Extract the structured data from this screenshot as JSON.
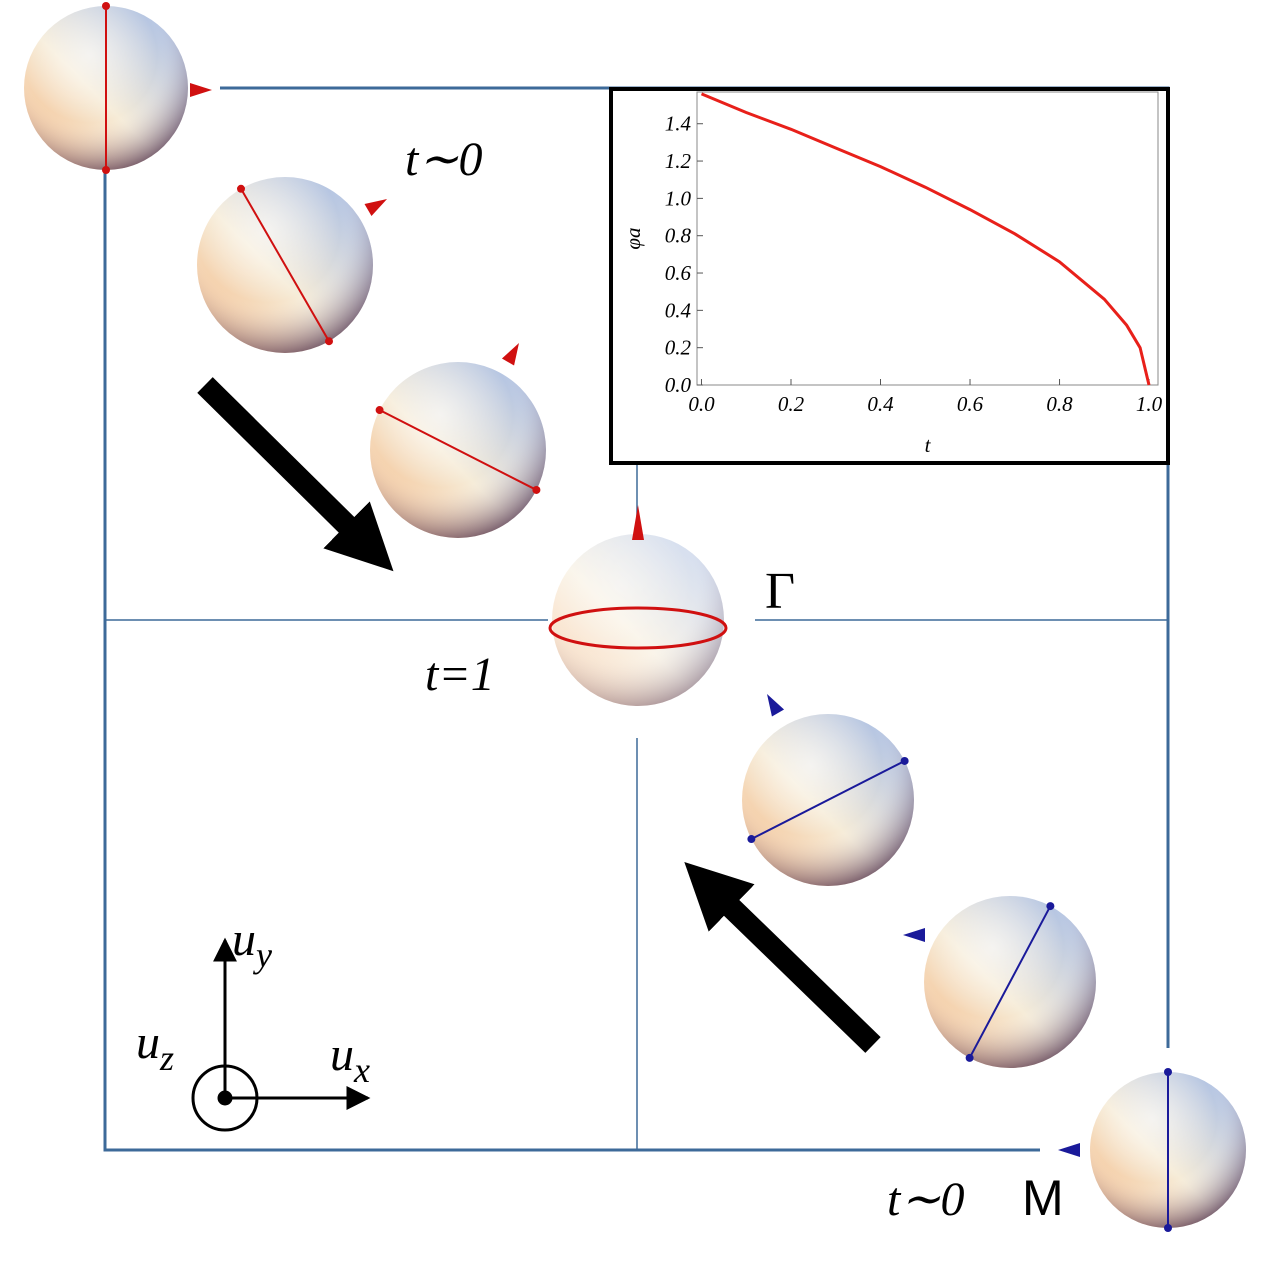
{
  "labels": {
    "t_top": "t∼0",
    "t_mid": "t=1",
    "gamma": "Γ",
    "t_bottom": "t∼0",
    "m": "M",
    "uy": {
      "main": "u",
      "sub": "y"
    },
    "uz": {
      "main": "u",
      "sub": "z"
    },
    "ux": {
      "main": "u",
      "sub": "x"
    }
  },
  "chart_data": {
    "type": "line",
    "x_label": "t",
    "y_label": "φa",
    "x": [
      0,
      0.1,
      0.2,
      0.3,
      0.4,
      0.5,
      0.6,
      0.7,
      0.8,
      0.9,
      0.95,
      0.98,
      1.0
    ],
    "series": [
      {
        "name": "φa",
        "color": "#e8201a",
        "values": [
          1.56,
          1.46,
          1.37,
          1.27,
          1.17,
          1.06,
          0.94,
          0.81,
          0.66,
          0.46,
          0.32,
          0.2,
          0.0
        ]
      }
    ],
    "xlim": [
      -0.01,
      1.02
    ],
    "ylim": [
      0,
      1.57
    ],
    "xticks": [
      {
        "value": 0,
        "label": "0.0"
      },
      {
        "value": 0.2,
        "label": "0.2"
      },
      {
        "value": 0.4,
        "label": "0.4"
      },
      {
        "value": 0.6,
        "label": "0.6"
      },
      {
        "value": 0.8,
        "label": "0.8"
      },
      {
        "value": 1.0,
        "label": "1.0"
      }
    ],
    "yticks": [
      {
        "value": 0,
        "label": "0.0"
      },
      {
        "value": 0.2,
        "label": "0.2"
      },
      {
        "value": 0.4,
        "label": "0.4"
      },
      {
        "value": 0.6,
        "label": "0.6"
      },
      {
        "value": 0.8,
        "label": "0.8"
      },
      {
        "value": 1.0,
        "label": "1.0"
      },
      {
        "value": 1.2,
        "label": "1.2"
      },
      {
        "value": 1.4,
        "label": "1.4"
      }
    ]
  }
}
